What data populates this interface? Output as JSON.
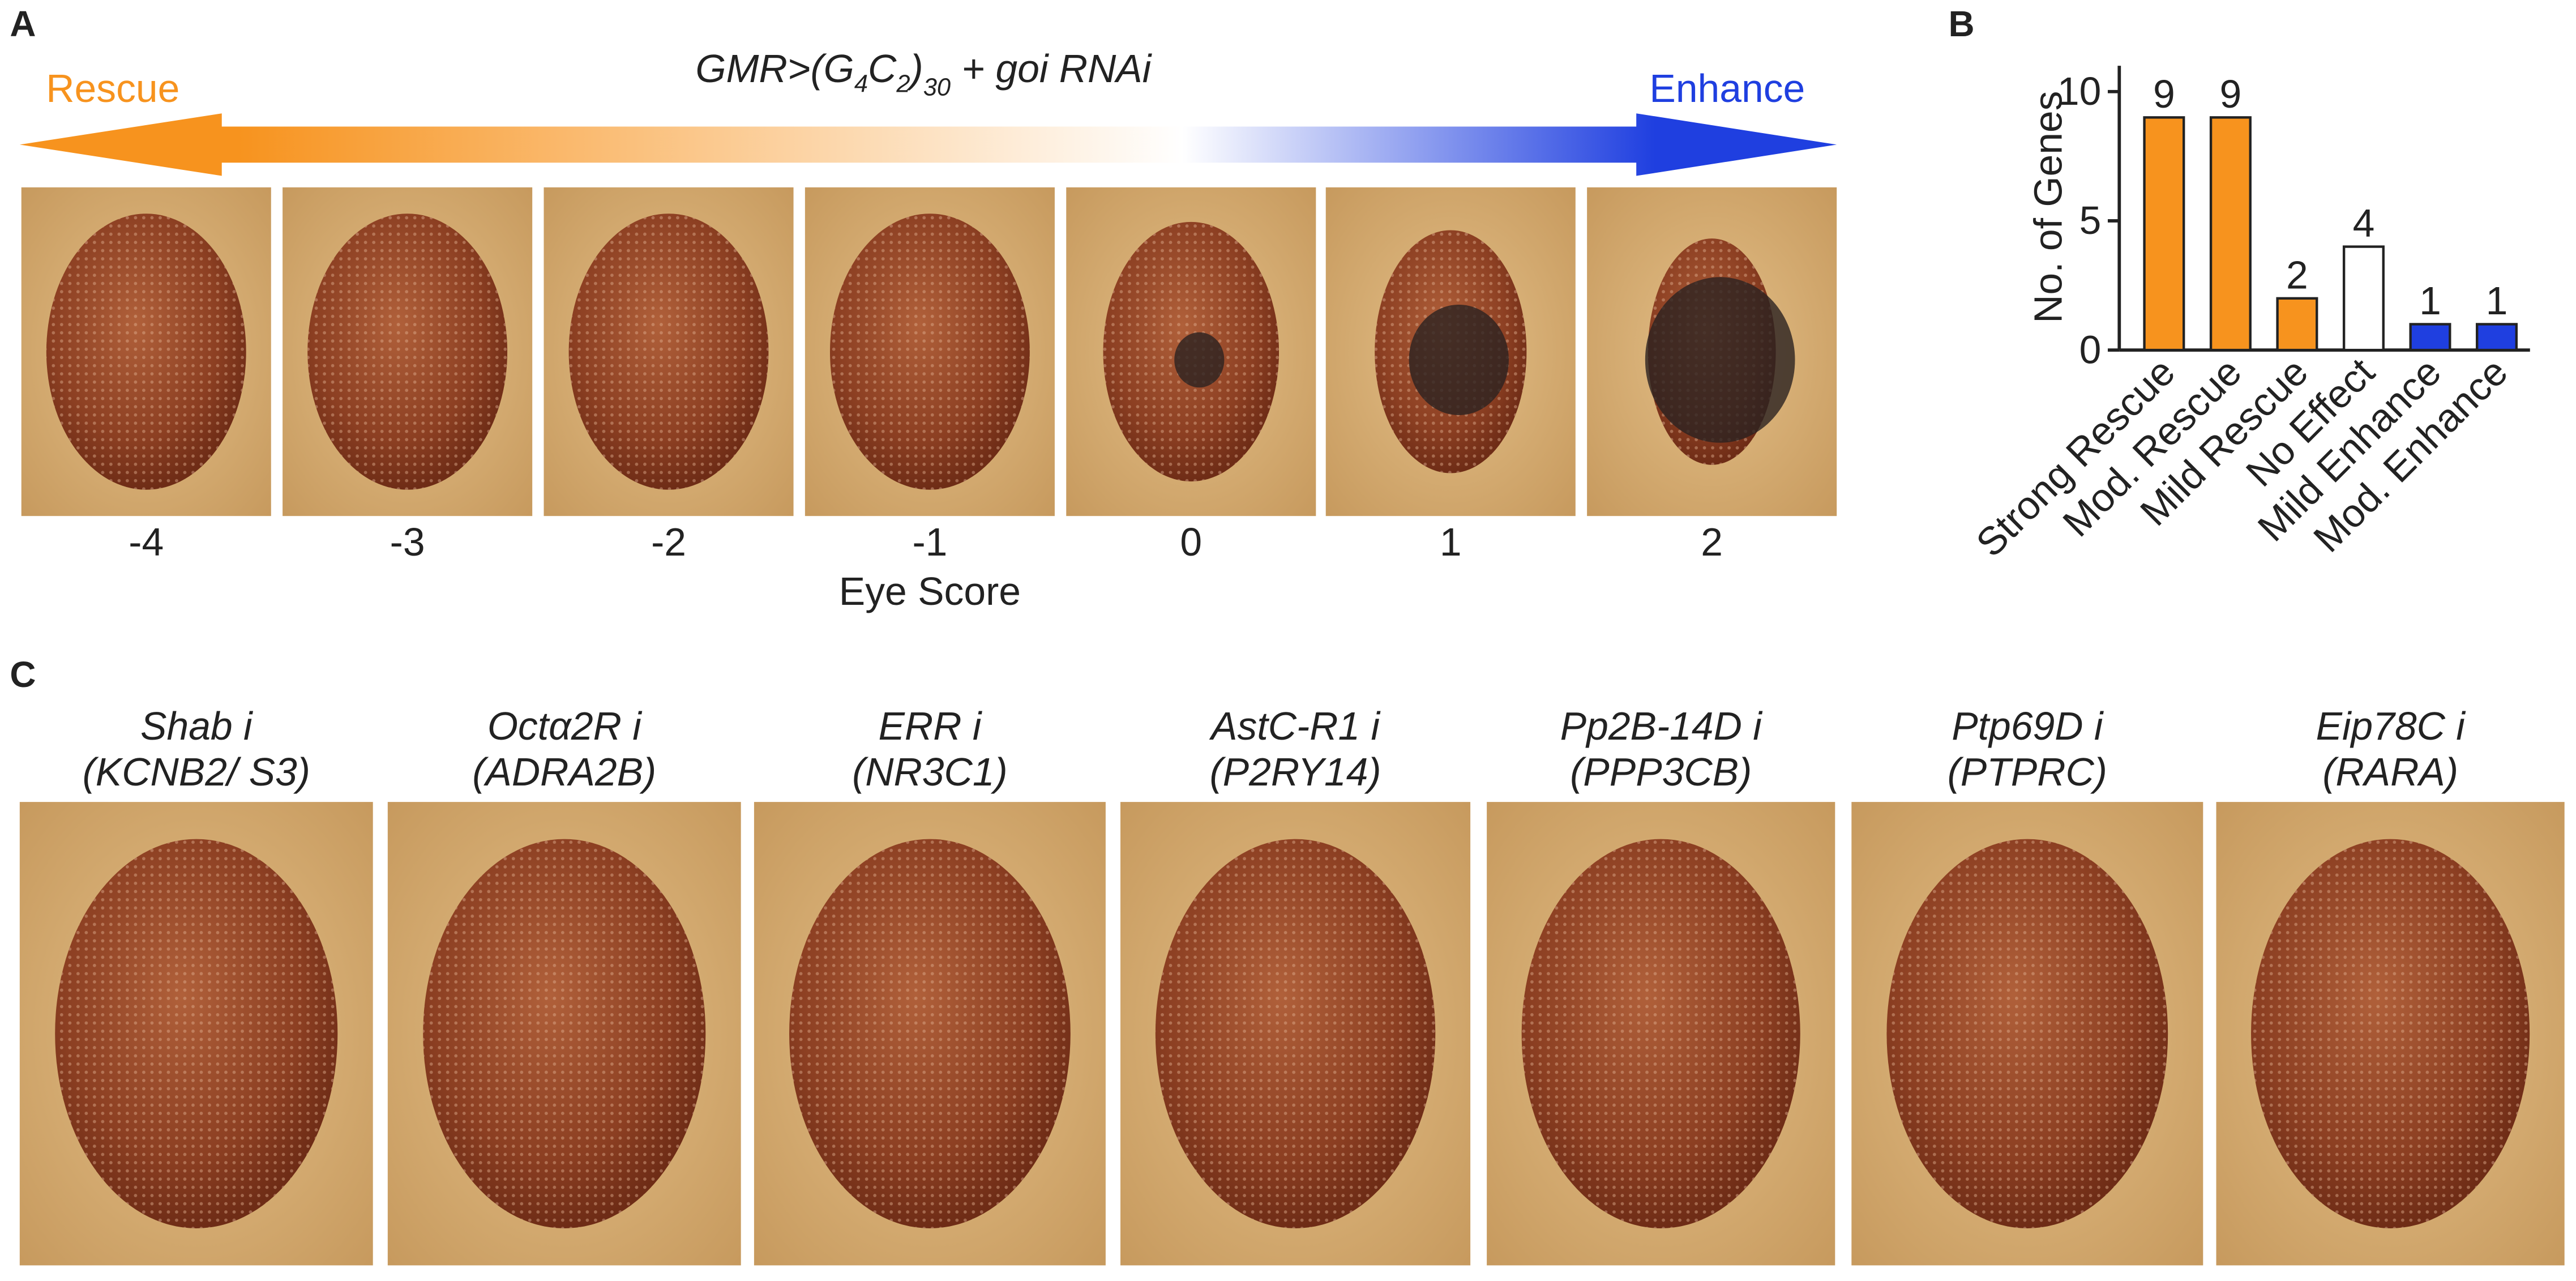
{
  "panel_labels": [
    "A",
    "B",
    "C"
  ],
  "panel_a": {
    "title": [
      "GMR>(G",
      "4",
      "C",
      "2",
      ")",
      "30",
      " + goi RNAi"
    ],
    "left_label": "Rescue",
    "right_label": "Enhance",
    "scores": [
      -4,
      -3,
      -2,
      -1,
      0,
      1,
      2
    ],
    "x_label": "Eye Score"
  },
  "chart_data": {
    "type": "bar",
    "ylabel": "No. of Genes",
    "categories": [
      "Strong Rescue",
      "Mod. Rescue",
      "Mild Rescue",
      "No Effect",
      "Mild Enhance",
      "Mod. Enhance"
    ],
    "values": [
      9,
      9,
      2,
      4,
      1,
      1
    ],
    "colors": [
      "#f7931e",
      "#f7931e",
      "#f7931e",
      "#ffffff",
      "#1f3fe0",
      "#1f3fe0"
    ],
    "ylim": [
      0,
      11
    ],
    "yticks": [
      0,
      5,
      10
    ]
  },
  "panel_c": {
    "labels": [
      [
        "Shab i",
        "(KCNB2/ S3)"
      ],
      [
        "Octα2R i",
        "(ADRA2B)"
      ],
      [
        "ERR i",
        "(NR3C1)"
      ],
      [
        "AstC-R1 i",
        "(P2RY14)"
      ],
      [
        "Pp2B-14D i",
        "(PPP3CB)"
      ],
      [
        "Ptp69D i",
        "(PTPRC)"
      ],
      [
        "Eip78C i",
        "(RARA)"
      ]
    ]
  }
}
